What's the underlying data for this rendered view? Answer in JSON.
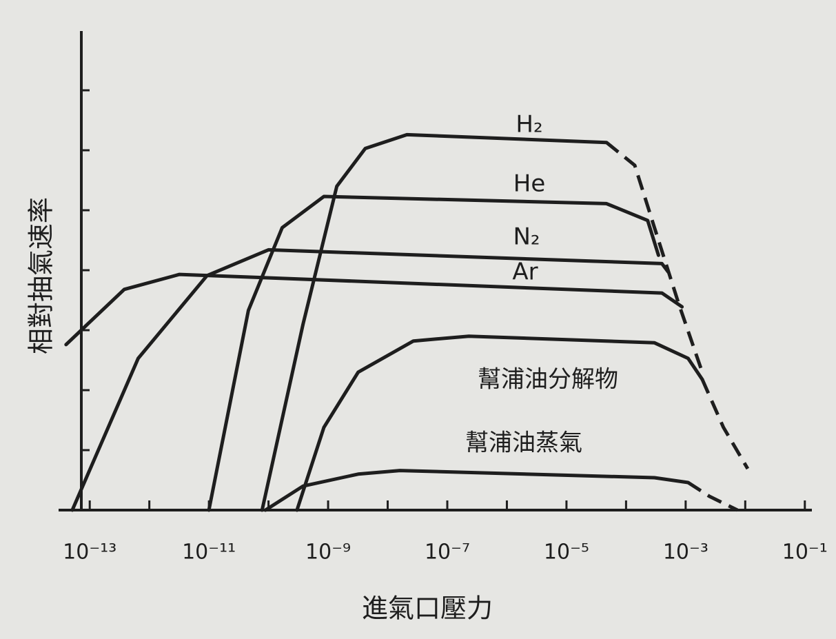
{
  "chart_data": {
    "type": "line",
    "x_label": "進氣口壓力",
    "y_label": "相對抽氣速率",
    "x_log": true,
    "xlim": [
      3e-14,
      0.15
    ],
    "ylim": [
      0,
      8
    ],
    "xticks": [
      {
        "value": 1e-13,
        "label": "10⁻¹³"
      },
      {
        "value": 1e-11,
        "label": "10⁻¹¹"
      },
      {
        "value": 1e-09,
        "label": "10⁻⁹"
      },
      {
        "value": 1e-07,
        "label": "10⁻⁷"
      },
      {
        "value": 1e-05,
        "label": "10⁻⁵"
      },
      {
        "value": 0.001,
        "label": "10⁻³"
      },
      {
        "value": 0.1,
        "label": "10⁻¹"
      }
    ],
    "xminor": [
      1e-12,
      1e-10,
      1e-08,
      1e-06,
      0.0001,
      0.01
    ],
    "yticks": [
      1,
      2,
      3,
      4,
      5,
      6,
      7
    ],
    "color": "#1e1e1e",
    "series": [
      {
        "name": "H₂",
        "x": [
          7.8e-11,
          3.8e-10,
          1.4e-09,
          4.2e-09,
          2.1e-08,
          4.7e-05,
          0.00014,
          0.0003,
          0.00076,
          0.0019
        ],
        "values": [
          0,
          3.1,
          5.4,
          6.03,
          6.26,
          6.13,
          5.75,
          4.71,
          3.45,
          2.3
        ],
        "dashed_after": 4.7e-05
      },
      {
        "name": "He",
        "x": [
          1e-11,
          4.6e-11,
          1.7e-10,
          8.5e-10,
          4.7e-05,
          0.00023,
          0.00035
        ],
        "values": [
          0,
          3.33,
          4.71,
          5.23,
          5.11,
          4.83,
          4.25
        ]
      },
      {
        "name": "N₂",
        "x": [
          5.1e-14,
          6.5e-13,
          9.3e-12,
          1e-10,
          0.0004,
          0.00051
        ],
        "values": [
          0,
          2.53,
          3.91,
          4.34,
          4.11,
          3.97
        ]
      },
      {
        "name": "Ar",
        "x": [
          4e-14,
          3.8e-13,
          3.2e-12,
          0.0004,
          0.00087
        ],
        "values": [
          2.76,
          3.68,
          3.93,
          3.62,
          3.39
        ]
      },
      {
        "name": "幫浦油分解物",
        "x": [
          3e-10,
          8.5e-10,
          3.2e-09,
          2.7e-08,
          2.3e-07,
          0.0003,
          0.0011,
          0.0019,
          0.0043,
          0.011
        ],
        "values": [
          0,
          1.38,
          2.3,
          2.82,
          2.9,
          2.79,
          2.53,
          2.18,
          1.38,
          0.69
        ],
        "dashed_after": 0.0019
      },
      {
        "name": "幫浦油蒸氣",
        "x": [
          8.9e-11,
          3.8e-10,
          3.2e-09,
          1.6e-08,
          0.0003,
          0.0011,
          0.0025,
          0.0074
        ],
        "values": [
          0,
          0.4,
          0.6,
          0.66,
          0.54,
          0.46,
          0.23,
          0
        ],
        "dashed_after": 0.0011
      }
    ]
  }
}
